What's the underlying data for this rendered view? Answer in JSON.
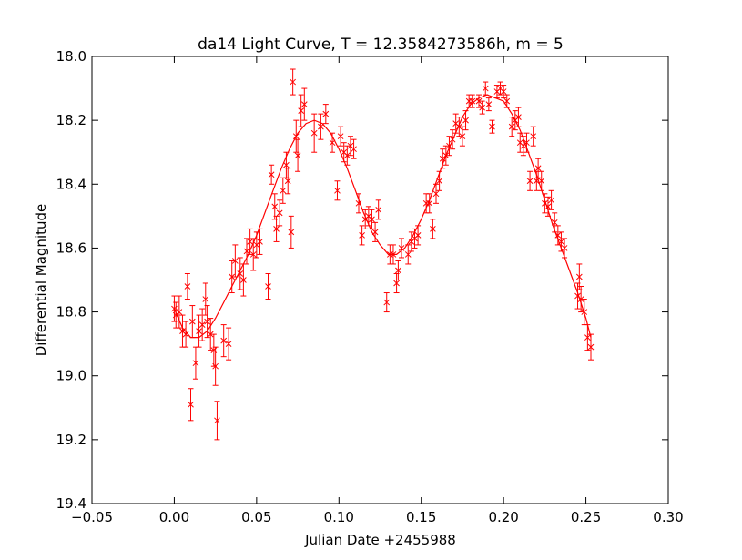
{
  "chart_data": {
    "type": "scatter",
    "title": "da14 Light Curve,  T = 12.3584273586h, m = 5",
    "xlabel": "Julian Date +2455988",
    "ylabel": "Differential Magnitude",
    "xlim": [
      -0.05,
      0.3
    ],
    "ylim": [
      19.4,
      18.0
    ],
    "y_inverted": true,
    "xticks": [
      -0.05,
      0.0,
      0.05,
      0.1,
      0.15,
      0.2,
      0.25,
      0.3
    ],
    "xtick_labels": [
      "−0.05",
      "0.00",
      "0.05",
      "0.10",
      "0.15",
      "0.20",
      "0.25",
      "0.30"
    ],
    "yticks": [
      18.0,
      18.2,
      18.4,
      18.6,
      18.8,
      19.0,
      19.2,
      19.4
    ],
    "ytick_labels": [
      "18.0",
      "18.2",
      "18.4",
      "18.6",
      "18.8",
      "19.0",
      "19.2",
      "19.4"
    ],
    "grid": false,
    "color": "#ff0000",
    "series": [
      {
        "kind": "points_with_errorbars",
        "marker": "x",
        "points": [
          [
            0.0,
            18.79,
            0.04
          ],
          [
            0.001,
            18.81,
            0.04
          ],
          [
            0.003,
            18.8,
            0.05
          ],
          [
            0.005,
            18.86,
            0.05
          ],
          [
            0.007,
            18.87,
            0.04
          ],
          [
            0.008,
            18.72,
            0.04
          ],
          [
            0.01,
            19.09,
            0.05
          ],
          [
            0.011,
            18.83,
            0.05
          ],
          [
            0.013,
            18.96,
            0.05
          ],
          [
            0.015,
            18.86,
            0.05
          ],
          [
            0.017,
            18.84,
            0.05
          ],
          [
            0.019,
            18.76,
            0.05
          ],
          [
            0.02,
            18.83,
            0.05
          ],
          [
            0.022,
            18.87,
            0.05
          ],
          [
            0.024,
            18.92,
            0.05
          ],
          [
            0.025,
            18.97,
            0.06
          ],
          [
            0.026,
            19.14,
            0.06
          ],
          [
            0.03,
            18.89,
            0.05
          ],
          [
            0.033,
            18.9,
            0.05
          ],
          [
            0.035,
            18.69,
            0.05
          ],
          [
            0.037,
            18.64,
            0.05
          ],
          [
            0.04,
            18.68,
            0.05
          ],
          [
            0.042,
            18.7,
            0.05
          ],
          [
            0.044,
            18.61,
            0.04
          ],
          [
            0.046,
            18.58,
            0.04
          ],
          [
            0.048,
            18.62,
            0.05
          ],
          [
            0.05,
            18.59,
            0.04
          ],
          [
            0.052,
            18.58,
            0.04
          ],
          [
            0.057,
            18.72,
            0.04
          ],
          [
            0.059,
            18.37,
            0.03
          ],
          [
            0.061,
            18.47,
            0.04
          ],
          [
            0.062,
            18.54,
            0.04
          ],
          [
            0.064,
            18.49,
            0.04
          ],
          [
            0.066,
            18.42,
            0.04
          ],
          [
            0.068,
            18.34,
            0.04
          ],
          [
            0.069,
            18.39,
            0.04
          ],
          [
            0.071,
            18.55,
            0.05
          ],
          [
            0.072,
            18.08,
            0.04
          ],
          [
            0.074,
            18.25,
            0.05
          ],
          [
            0.075,
            18.31,
            0.05
          ],
          [
            0.077,
            18.17,
            0.05
          ],
          [
            0.079,
            18.15,
            0.05
          ],
          [
            0.085,
            18.24,
            0.06
          ],
          [
            0.089,
            18.22,
            0.04
          ],
          [
            0.092,
            18.18,
            0.03
          ],
          [
            0.096,
            18.27,
            0.03
          ],
          [
            0.099,
            18.42,
            0.03
          ],
          [
            0.101,
            18.25,
            0.03
          ],
          [
            0.103,
            18.3,
            0.03
          ],
          [
            0.105,
            18.31,
            0.03
          ],
          [
            0.107,
            18.28,
            0.03
          ],
          [
            0.109,
            18.29,
            0.03
          ],
          [
            0.112,
            18.46,
            0.03
          ],
          [
            0.114,
            18.56,
            0.03
          ],
          [
            0.116,
            18.51,
            0.03
          ],
          [
            0.118,
            18.5,
            0.03
          ],
          [
            0.12,
            18.51,
            0.03
          ],
          [
            0.122,
            18.55,
            0.03
          ],
          [
            0.124,
            18.48,
            0.03
          ],
          [
            0.129,
            18.77,
            0.03
          ],
          [
            0.131,
            18.62,
            0.03
          ],
          [
            0.133,
            18.62,
            0.03
          ],
          [
            0.135,
            18.71,
            0.03
          ],
          [
            0.136,
            18.67,
            0.03
          ],
          [
            0.138,
            18.6,
            0.03
          ],
          [
            0.142,
            18.62,
            0.03
          ],
          [
            0.144,
            18.58,
            0.03
          ],
          [
            0.146,
            18.57,
            0.03
          ],
          [
            0.148,
            18.56,
            0.03
          ],
          [
            0.153,
            18.46,
            0.03
          ],
          [
            0.155,
            18.46,
            0.03
          ],
          [
            0.157,
            18.54,
            0.03
          ],
          [
            0.159,
            18.43,
            0.03
          ],
          [
            0.161,
            18.39,
            0.03
          ],
          [
            0.163,
            18.32,
            0.03
          ],
          [
            0.165,
            18.31,
            0.03
          ],
          [
            0.167,
            18.28,
            0.03
          ],
          [
            0.169,
            18.26,
            0.03
          ],
          [
            0.171,
            18.21,
            0.03
          ],
          [
            0.173,
            18.22,
            0.03
          ],
          [
            0.175,
            18.25,
            0.03
          ],
          [
            0.177,
            18.2,
            0.03
          ],
          [
            0.179,
            18.14,
            0.02
          ],
          [
            0.181,
            18.14,
            0.02
          ],
          [
            0.185,
            18.14,
            0.02
          ],
          [
            0.187,
            18.16,
            0.02
          ],
          [
            0.189,
            18.1,
            0.02
          ],
          [
            0.191,
            18.15,
            0.02
          ],
          [
            0.193,
            18.22,
            0.02
          ],
          [
            0.196,
            18.11,
            0.02
          ],
          [
            0.198,
            18.1,
            0.02
          ],
          [
            0.2,
            18.11,
            0.02
          ],
          [
            0.202,
            18.14,
            0.02
          ],
          [
            0.205,
            18.22,
            0.03
          ],
          [
            0.207,
            18.2,
            0.03
          ],
          [
            0.209,
            18.19,
            0.03
          ],
          [
            0.21,
            18.27,
            0.03
          ],
          [
            0.212,
            18.28,
            0.03
          ],
          [
            0.214,
            18.27,
            0.03
          ],
          [
            0.216,
            18.39,
            0.03
          ],
          [
            0.218,
            18.25,
            0.03
          ],
          [
            0.22,
            18.39,
            0.03
          ],
          [
            0.221,
            18.35,
            0.03
          ],
          [
            0.223,
            18.39,
            0.03
          ],
          [
            0.225,
            18.46,
            0.03
          ],
          [
            0.227,
            18.47,
            0.03
          ],
          [
            0.229,
            18.45,
            0.03
          ],
          [
            0.231,
            18.52,
            0.03
          ],
          [
            0.233,
            18.56,
            0.03
          ],
          [
            0.235,
            18.58,
            0.03
          ],
          [
            0.237,
            18.6,
            0.03
          ],
          [
            0.245,
            18.75,
            0.04
          ],
          [
            0.246,
            18.69,
            0.04
          ],
          [
            0.247,
            18.76,
            0.04
          ],
          [
            0.249,
            18.8,
            0.04
          ],
          [
            0.251,
            18.88,
            0.04
          ],
          [
            0.253,
            18.91,
            0.04
          ]
        ]
      },
      {
        "kind": "fit_curve",
        "points": [
          [
            0.0,
            18.79
          ],
          [
            0.005,
            18.85
          ],
          [
            0.01,
            18.88
          ],
          [
            0.015,
            18.88
          ],
          [
            0.02,
            18.86
          ],
          [
            0.025,
            18.82
          ],
          [
            0.03,
            18.77
          ],
          [
            0.035,
            18.72
          ],
          [
            0.04,
            18.67
          ],
          [
            0.045,
            18.62
          ],
          [
            0.05,
            18.56
          ],
          [
            0.055,
            18.49
          ],
          [
            0.06,
            18.42
          ],
          [
            0.065,
            18.35
          ],
          [
            0.07,
            18.29
          ],
          [
            0.075,
            18.24
          ],
          [
            0.08,
            18.21
          ],
          [
            0.085,
            18.2
          ],
          [
            0.09,
            18.21
          ],
          [
            0.095,
            18.24
          ],
          [
            0.1,
            18.29
          ],
          [
            0.105,
            18.35
          ],
          [
            0.11,
            18.42
          ],
          [
            0.115,
            18.49
          ],
          [
            0.12,
            18.55
          ],
          [
            0.125,
            18.59
          ],
          [
            0.13,
            18.62
          ],
          [
            0.135,
            18.62
          ],
          [
            0.14,
            18.6
          ],
          [
            0.145,
            18.56
          ],
          [
            0.15,
            18.51
          ],
          [
            0.155,
            18.45
          ],
          [
            0.16,
            18.38
          ],
          [
            0.165,
            18.31
          ],
          [
            0.17,
            18.25
          ],
          [
            0.175,
            18.19
          ],
          [
            0.18,
            18.15
          ],
          [
            0.185,
            18.13
          ],
          [
            0.19,
            18.12
          ],
          [
            0.195,
            18.13
          ],
          [
            0.2,
            18.14
          ],
          [
            0.205,
            18.18
          ],
          [
            0.21,
            18.23
          ],
          [
            0.215,
            18.3
          ],
          [
            0.22,
            18.37
          ],
          [
            0.225,
            18.45
          ],
          [
            0.23,
            18.53
          ],
          [
            0.235,
            18.6
          ],
          [
            0.24,
            18.67
          ],
          [
            0.245,
            18.74
          ],
          [
            0.25,
            18.82
          ],
          [
            0.253,
            18.88
          ]
        ]
      }
    ]
  }
}
